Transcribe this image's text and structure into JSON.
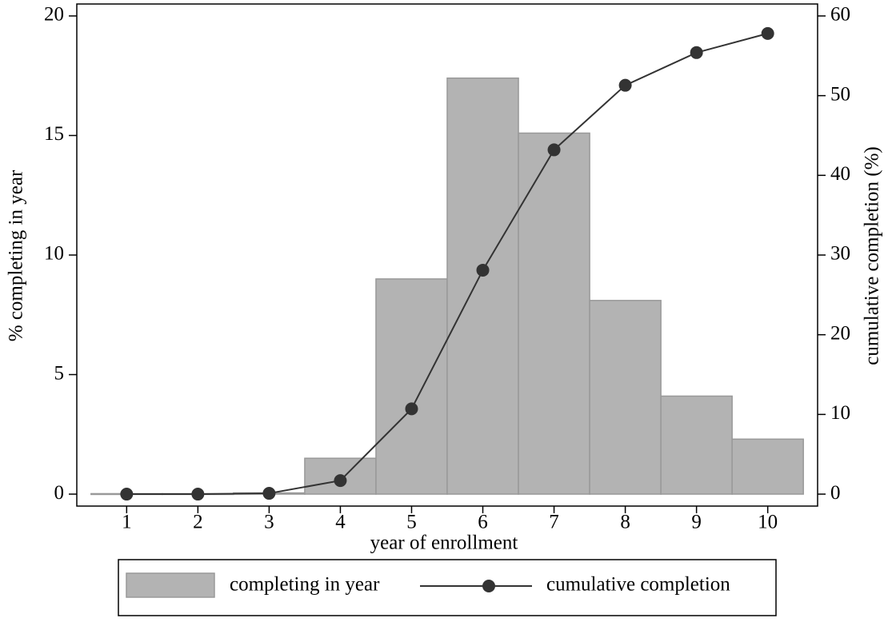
{
  "chart_data": {
    "type": "bar",
    "xlabel": "year of enrollment",
    "ylabel": "% completing in year",
    "y2label": "cumulative completion (%)",
    "x": [
      1,
      2,
      3,
      4,
      5,
      6,
      7,
      8,
      9,
      10
    ],
    "xlim": [
      0.3,
      10.7
    ],
    "xticks": [
      1,
      2,
      3,
      4,
      5,
      6,
      7,
      8,
      9,
      10
    ],
    "ylim": [
      -0.5,
      20.5
    ],
    "yticks": [
      0,
      5,
      10,
      15,
      20
    ],
    "y2lim": [
      -1.5,
      61.5
    ],
    "y2ticks": [
      0,
      10,
      20,
      30,
      40,
      50,
      60
    ],
    "legend": "bottom",
    "series": [
      {
        "name": "completing in year",
        "type": "bar",
        "color": "#b3b3b3",
        "axis": "y",
        "values": [
          0.02,
          0.02,
          0.05,
          1.5,
          9.0,
          17.4,
          15.1,
          8.1,
          4.1,
          2.3
        ]
      },
      {
        "name": "cumulative completion",
        "type": "line",
        "color": "#333333",
        "axis": "y2",
        "values": [
          0,
          0,
          0.1,
          1.7,
          10.7,
          28.1,
          43.2,
          51.3,
          55.4,
          57.8
        ]
      }
    ]
  }
}
